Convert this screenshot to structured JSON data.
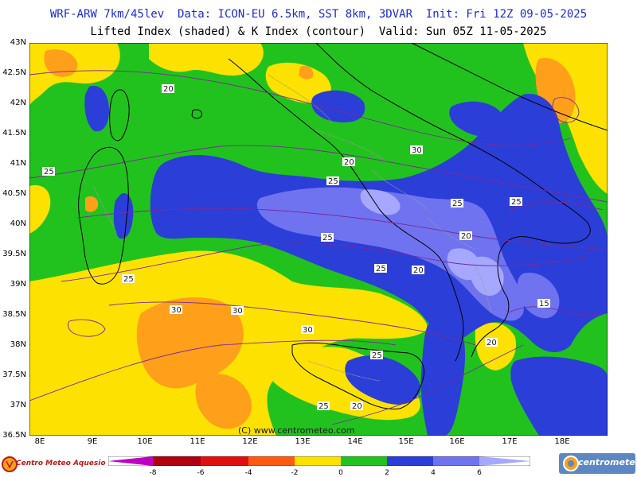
{
  "header": {
    "line1": "WRF-ARW 7km/45lev  Data: ICON-EU 6.5km, SST 8km, 3DVAR  Init: Fri 12Z 09-05-2025",
    "line2": "Lifted Index (shaded) & K Index (contour)  Valid: Sun 05Z 11-05-2025"
  },
  "map": {
    "latitudes": [
      "43N",
      "42.5N",
      "42N",
      "41.5N",
      "41N",
      "40.5N",
      "40N",
      "39.5N",
      "39N",
      "38.5N",
      "38N",
      "37.5N",
      "37N",
      "36.5N"
    ],
    "longitudes": [
      "8E",
      "9E",
      "10E",
      "11E",
      "12E",
      "13E",
      "14E",
      "15E",
      "16E",
      "17E",
      "18E"
    ],
    "watermark": "(C) www.centrometeo.com",
    "contour_labels": [
      "20",
      "20",
      "20",
      "20",
      "20",
      "20",
      "25",
      "25",
      "25",
      "25",
      "25",
      "25",
      "25",
      "25",
      "25",
      "30",
      "30",
      "30",
      "30",
      "15"
    ],
    "colors": {
      "green": "#22c21e",
      "yellow": "#fde100",
      "orange": "#ff9f1a",
      "dark_orange": "#f08018",
      "blue": "#2b3ed8",
      "light_blue": "#6f73f0",
      "lilac": "#a6a8ff",
      "contour": "#7a2a9a"
    }
  },
  "legend": {
    "ticks": [
      "-8",
      "-6",
      "-4",
      "-2",
      "0",
      "2",
      "4",
      "6"
    ],
    "colors": [
      "#c000c0",
      "#b00010",
      "#e01010",
      "#ff5a10",
      "#ffa020",
      "#fde100",
      "#22c21e",
      "#2b3ed8",
      "#6f73f0",
      "#a6a8ff"
    ]
  },
  "logos": {
    "left": "Centro Meteo Aquesio",
    "right": "centrometeo"
  }
}
